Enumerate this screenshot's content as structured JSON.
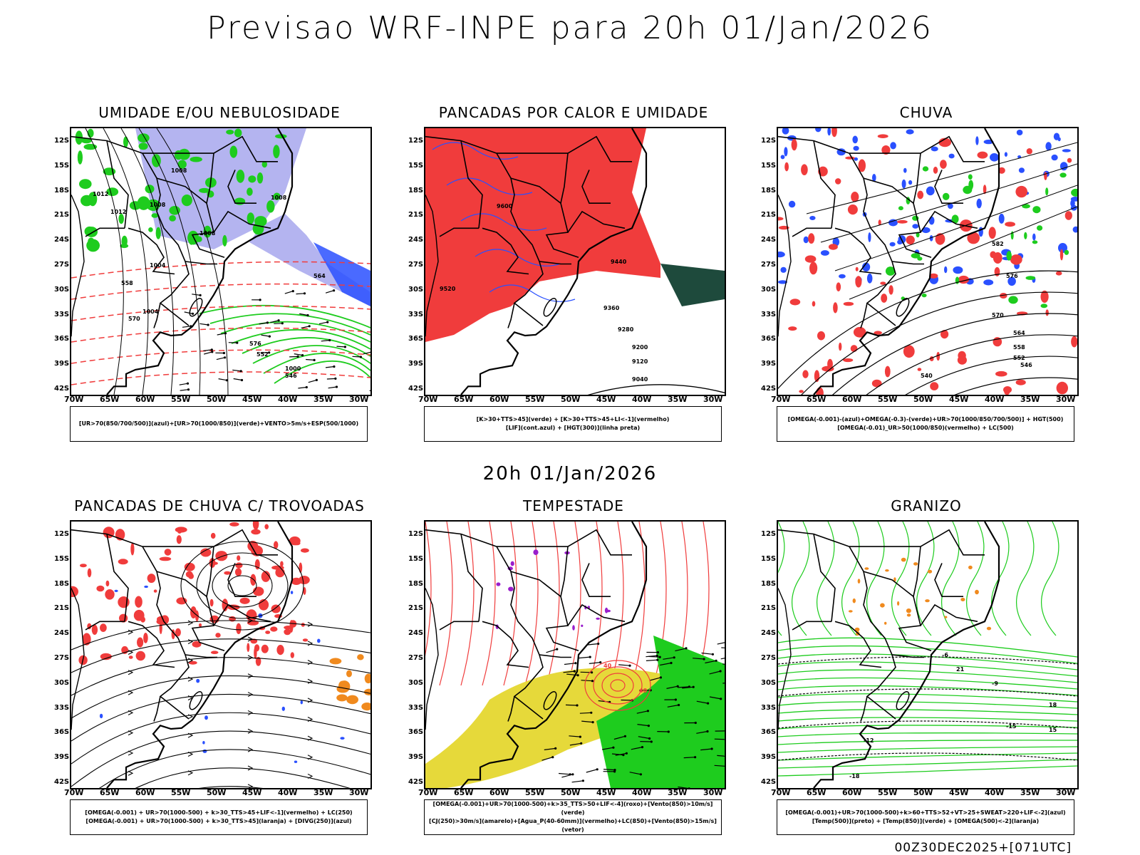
{
  "title": "Previsao WRF-INPE  para 20h 01/Jan/2026",
  "subtitle": "20h 01/Jan/2026",
  "footer": "00Z30DEC2025+[071UTC]",
  "lat_labels": [
    "12S",
    "15S",
    "18S",
    "21S",
    "24S",
    "27S",
    "30S",
    "33S",
    "36S",
    "39S",
    "42S"
  ],
  "lon_labels": [
    "70W",
    "65W",
    "60W",
    "55W",
    "50W",
    "45W",
    "40W",
    "35W",
    "30W"
  ],
  "colors": {
    "red": "#f03c3c",
    "green": "#1ecc1e",
    "blue": "#2a50ff",
    "lavender": "#b4b4f0",
    "yellow": "#e6d93a",
    "orange": "#f08a1e",
    "darkgreen": "#1e4a3c",
    "purple": "#9a1ecc"
  },
  "panels": [
    {
      "id": "umidade",
      "title": "UMIDADE E/OU NEBULOSIDADE",
      "legend": [
        "[UR>70(850/700/500)](azul)+[UR>70(1000/850)](verde)+VENTO>5m/s+ESP(500/1000)"
      ],
      "labels": [
        "1008",
        "1008",
        "1012",
        "1012",
        "1008",
        "1008",
        "1004",
        "1004",
        "1000",
        "576",
        "570",
        "564",
        "558",
        "552",
        "546"
      ]
    },
    {
      "id": "pancadas",
      "title": "PANCADAS POR CALOR E UMIDADE",
      "legend": [
        "[K>30+TTS>45](verde) + [K>30+TTS>45+LI<-1](vermelho)",
        "[LIF](cont.azul) + [HGT(300)](linha preta)"
      ],
      "labels": [
        "9600",
        "9520",
        "9440",
        "9360",
        "9280",
        "9200",
        "9120",
        "9040"
      ]
    },
    {
      "id": "chuva",
      "title": "CHUVA",
      "legend": [
        "[OMEGA(-0.001)-(azul)+OMEGA(-0.3)-(verde)+UR>70(1000/850/700/500)] + HGT(500)",
        "[OMEGA(-0.01)_UR>50(1000/850)(vermelho) + LC(500)"
      ],
      "labels": [
        "582",
        "576",
        "570",
        "564",
        "558",
        "552",
        "546",
        "540"
      ]
    },
    {
      "id": "trovoadas",
      "title": "PANCADAS DE CHUVA C/ TROVOADAS",
      "legend": [
        "[OMEGA(-0.001) + UR>70(1000-500) + k>30_TTS>45+LIF<-1](vermelho) + LC(250)",
        "[OMEGA(-0.001) + UR>70(1000-500) + k>30_TTS>45](laranja) + [DIVG(250)](azul)"
      ],
      "labels": []
    },
    {
      "id": "tempestade",
      "title": "TEMPESTADE",
      "legend": [
        "[OMEGA(-0.001)+UR>70(1000-500)+k>35_TTS>50+LIF<-4](roxo)+[Vento(850)>10m/s](verde)",
        "[CJ(250)>30m/s](amarelo)+[Agua_P(40-60mm)](vermelho)+LC(850)+[Vento(850)>15m/s](vetor)"
      ],
      "labels": [
        "40",
        "40"
      ]
    },
    {
      "id": "granizo",
      "title": "GRANIZO",
      "legend": [
        "[OMEGA(-0.001)+UR>70(1000-500)+k>60+TTS>52+VT>25+SWEAT>220+LIF<-2](azul)",
        "[Temp(500)](preto) + [Temp(850)](verde) + [OMEGA(500)<-2](laranja)"
      ],
      "labels": [
        "-6",
        "-9",
        "-12",
        "-15",
        "-18",
        "15",
        "18",
        "21"
      ]
    }
  ]
}
